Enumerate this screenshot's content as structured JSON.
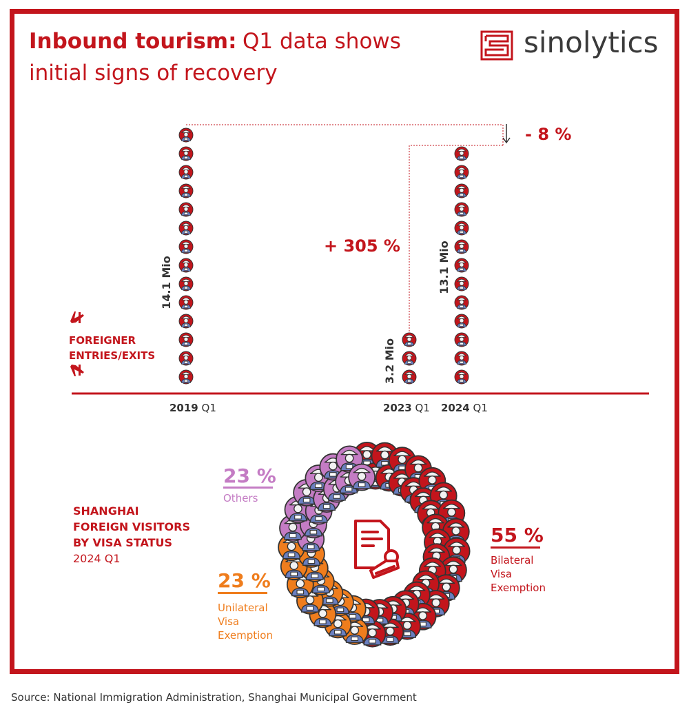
{
  "title": {
    "bold": "Inbound tourism:",
    "light_line1": "Q1 data shows",
    "light_line2": "initial signs of recovery"
  },
  "logo": {
    "text": "sinolytics",
    "icon": "maze-logo-icon"
  },
  "colors": {
    "red": "#c3151c",
    "purple": "#c47cc4",
    "orange": "#ef7d1d",
    "figure_head": "#f2f2f2",
    "figure_body": "#6a7fc0"
  },
  "entries_label": [
    "FOREIGNER",
    "ENTRIES/EXITS"
  ],
  "chart_data": [
    {
      "type": "bar",
      "title": "FOREIGNER ENTRIES/EXITS",
      "categories": [
        "2019 Q1",
        "2023 Q1",
        "2024 Q1"
      ],
      "values": [
        14.1,
        3.2,
        13.1
      ],
      "unit": "Mio",
      "value_labels": [
        "14.1 Mio",
        "3.2 Mio",
        "13.1 Mio"
      ],
      "icon_counts": [
        14,
        3,
        13
      ],
      "annotations": [
        {
          "text": "- 8 %",
          "from": "2019 Q1",
          "to": "2024 Q1"
        },
        {
          "text": "+ 305 %",
          "from": "2023 Q1",
          "to": "2024 Q1"
        }
      ]
    },
    {
      "type": "pie",
      "title": "SHANGHAI FOREIGN VISITORS BY VISA STATUS",
      "subtitle": "2024 Q1",
      "slices": [
        {
          "label": "Bilateral Visa Exemption",
          "value": 55,
          "pct_label": "55 %",
          "color": "#c3151c",
          "lines": [
            "Bilateral",
            "Visa",
            "Exemption"
          ]
        },
        {
          "label": "Unilateral Visa Exemption",
          "value": 23,
          "pct_label": "23 %",
          "color": "#ef7d1d",
          "lines": [
            "Unilateral",
            "Visa",
            "Exemption"
          ]
        },
        {
          "label": "Others",
          "value": 23,
          "pct_label": "23 %",
          "color": "#c47cc4",
          "lines": [
            "Others"
          ]
        }
      ]
    }
  ],
  "category_labels": [
    {
      "year": "2019",
      "q": "Q1"
    },
    {
      "year": "2023",
      "q": "Q1"
    },
    {
      "year": "2024",
      "q": "Q1"
    }
  ],
  "shanghai": {
    "line1": "SHANGHAI",
    "line2": "FOREIGN VISITORS",
    "line3": "BY VISA STATUS",
    "period": "2024 Q1"
  },
  "source": "Source: National Immigration Administration, Shanghai Municipal Government"
}
